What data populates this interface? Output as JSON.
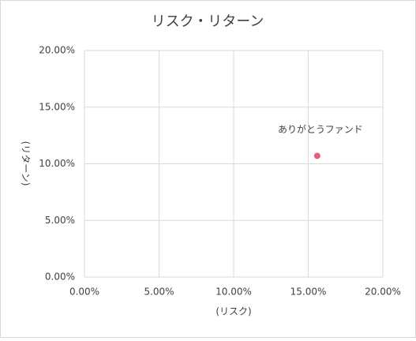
{
  "chart_data": {
    "type": "scatter",
    "title": "リスク・リターン",
    "x_label": "(リスク)",
    "y_label": "(リターン)",
    "series": [
      {
        "name": "ありがとうファンド",
        "color": "#e0607e",
        "x": [
          15.6
        ],
        "values": [
          10.7
        ]
      }
    ],
    "xlim": [
      0,
      20
    ],
    "ylim": [
      0,
      20
    ],
    "xticks": [
      {
        "value": 0,
        "label": "0.00%"
      },
      {
        "value": 5,
        "label": "5.00%"
      },
      {
        "value": 10,
        "label": "10.00%"
      },
      {
        "value": 15,
        "label": "15.00%"
      },
      {
        "value": 20,
        "label": "20.00%"
      }
    ],
    "yticks": [
      {
        "value": 0,
        "label": "0.00%"
      },
      {
        "value": 5,
        "label": "5.00%"
      },
      {
        "value": 10,
        "label": "10.00%"
      },
      {
        "value": 15,
        "label": "15.00%"
      },
      {
        "value": 20,
        "label": "20.00%"
      }
    ],
    "grid": true
  }
}
